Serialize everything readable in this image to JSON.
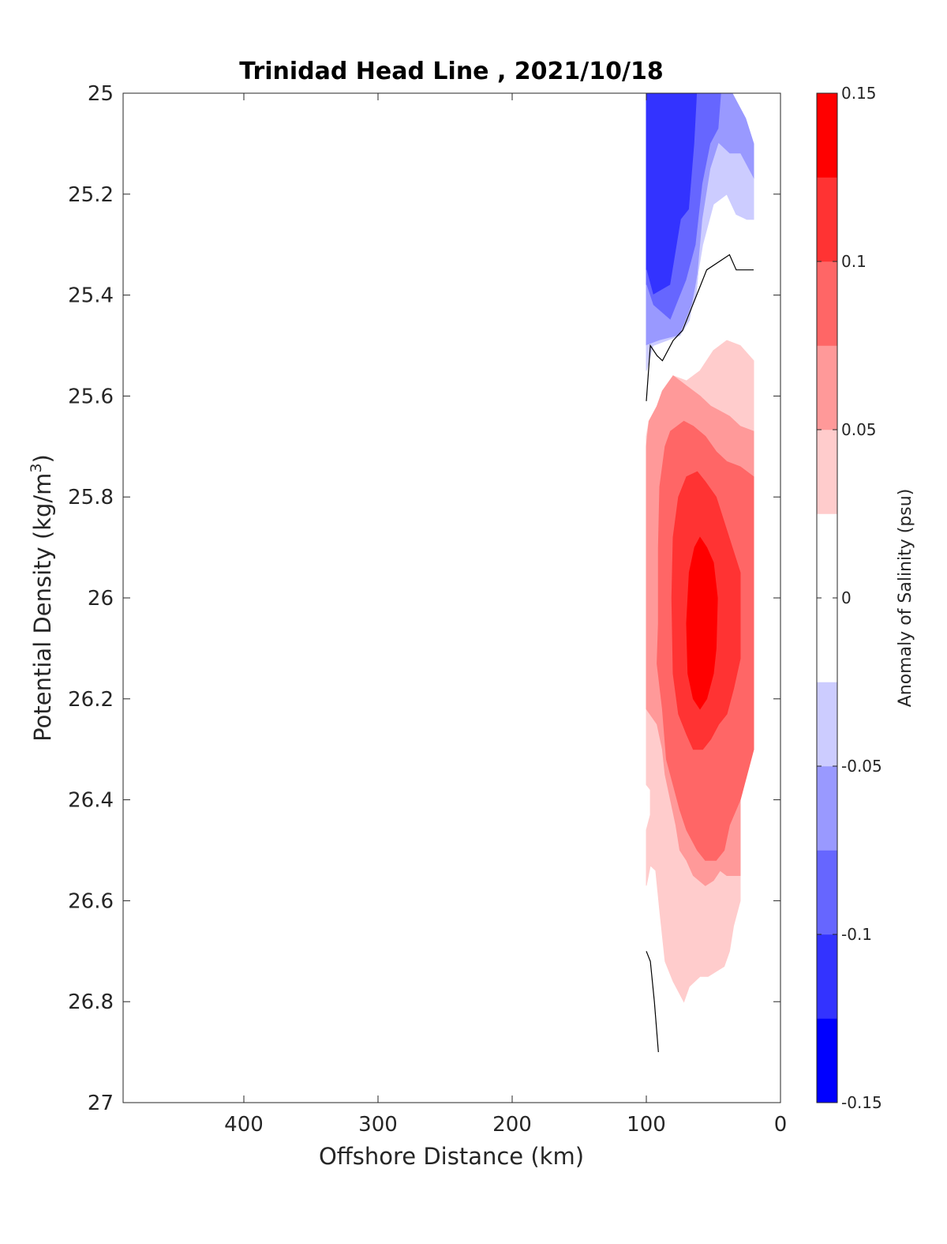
{
  "chart_data": {
    "type": "contour",
    "title": "Trinidad Head Line , 2021/10/18",
    "xlabel": "Offshore Distance (km)",
    "ylabel_base": "Potential Density (kg/m",
    "ylabel_sup": "3",
    "ylabel_close": ")",
    "xlim": [
      490,
      0
    ],
    "x_reversed": true,
    "ylim": [
      27,
      25
    ],
    "y_reversed": true,
    "x_ticks": [
      400,
      300,
      200,
      100,
      0
    ],
    "x_tick_labels": [
      "400",
      "300",
      "200",
      "100",
      "0"
    ],
    "y_ticks": [
      25,
      25.2,
      25.4,
      25.6,
      25.8,
      26,
      26.2,
      26.4,
      26.6,
      26.8,
      27
    ],
    "y_tick_labels": [
      "25",
      "25.2",
      "25.4",
      "25.6",
      "25.8",
      "26",
      "26.2",
      "26.4",
      "26.6",
      "26.8",
      "27"
    ],
    "grid": false,
    "colorbar": {
      "label": "Anomaly of Salinity (psu)",
      "range": [
        -0.15,
        0.15
      ],
      "levels": [
        -0.15,
        -0.125,
        -0.1,
        -0.075,
        -0.05,
        -0.025,
        0.025,
        0.05,
        0.075,
        0.1,
        0.125,
        0.15
      ],
      "colors": [
        "#0000ff",
        "#3333ff",
        "#6666ff",
        "#9999ff",
        "#ccccff",
        "#ffffff",
        "#ffcccc",
        "#ff9999",
        "#ff6666",
        "#ff3333",
        "#ff0000"
      ],
      "tick_values": [
        0.15,
        0.1,
        0.05,
        0,
        -0.05,
        -0.1,
        -0.15
      ],
      "tick_labels": [
        "0.15",
        "0.1",
        "0.05",
        "0",
        "-0.05",
        "-0.1",
        "-0.15"
      ]
    },
    "regions": [
      {
        "level": -0.125,
        "color": "#3333ff",
        "points": [
          [
            100,
            25
          ],
          [
            62,
            25
          ],
          [
            64,
            25.1
          ],
          [
            68,
            25.23
          ],
          [
            74,
            25.25
          ],
          [
            82,
            25.38
          ],
          [
            95,
            25.4
          ],
          [
            100,
            25.35
          ]
        ]
      },
      {
        "level": -0.1,
        "color": "#6666ff",
        "points": [
          [
            62,
            25
          ],
          [
            44,
            25
          ],
          [
            46,
            25.07
          ],
          [
            52,
            25.1
          ],
          [
            58,
            25.18
          ],
          [
            63,
            25.3
          ],
          [
            70,
            25.37
          ],
          [
            82,
            25.45
          ],
          [
            95,
            25.42
          ],
          [
            100,
            25.38
          ],
          [
            100,
            25.35
          ],
          [
            95,
            25.4
          ],
          [
            82,
            25.38
          ],
          [
            74,
            25.25
          ],
          [
            68,
            25.23
          ],
          [
            64,
            25.1
          ]
        ]
      },
      {
        "level": -0.075,
        "color": "#9999ff",
        "points": [
          [
            44,
            25
          ],
          [
            36,
            25
          ],
          [
            26,
            25.05
          ],
          [
            20,
            25.1
          ],
          [
            20,
            25.17
          ],
          [
            30,
            25.12
          ],
          [
            38,
            25.12
          ],
          [
            46,
            25.1
          ],
          [
            52,
            25.15
          ],
          [
            58,
            25.25
          ],
          [
            63,
            25.4
          ],
          [
            75,
            25.48
          ],
          [
            90,
            25.49
          ],
          [
            100,
            25.5
          ],
          [
            100,
            25.38
          ],
          [
            95,
            25.42
          ],
          [
            82,
            25.45
          ],
          [
            70,
            25.37
          ],
          [
            63,
            25.3
          ],
          [
            58,
            25.18
          ],
          [
            52,
            25.1
          ],
          [
            46,
            25.07
          ]
        ]
      },
      {
        "level": -0.05,
        "color": "#ccccff",
        "points": [
          [
            20,
            25.17
          ],
          [
            30,
            25.12
          ],
          [
            38,
            25.12
          ],
          [
            46,
            25.1
          ],
          [
            52,
            25.15
          ],
          [
            58,
            25.25
          ],
          [
            63,
            25.4
          ],
          [
            75,
            25.48
          ],
          [
            90,
            25.49
          ],
          [
            100,
            25.5
          ],
          [
            100,
            25.55
          ],
          [
            95,
            25.5
          ],
          [
            85,
            25.49
          ],
          [
            75,
            25.48
          ],
          [
            68,
            25.45
          ],
          [
            63,
            25.38
          ],
          [
            58,
            25.3
          ],
          [
            50,
            25.22
          ],
          [
            40,
            25.2
          ],
          [
            33,
            25.24
          ],
          [
            25,
            25.25
          ],
          [
            20,
            25.25
          ]
        ]
      },
      {
        "level": 0.025,
        "color": "#ffcccc",
        "points": [
          [
            20,
            25.53
          ],
          [
            30,
            25.5
          ],
          [
            40,
            25.49
          ],
          [
            50,
            25.51
          ],
          [
            60,
            25.55
          ],
          [
            70,
            25.57
          ],
          [
            80,
            25.56
          ],
          [
            88,
            25.59
          ],
          [
            92,
            25.62
          ],
          [
            98,
            25.65
          ],
          [
            100,
            25.68
          ],
          [
            100,
            26.37
          ],
          [
            97,
            26.38
          ],
          [
            97,
            26.43
          ],
          [
            100,
            26.46
          ],
          [
            100,
            26.57
          ],
          [
            97,
            26.53
          ],
          [
            93,
            26.54
          ],
          [
            90,
            26.62
          ],
          [
            86,
            26.72
          ],
          [
            80,
            26.76
          ],
          [
            72,
            26.8
          ],
          [
            68,
            26.77
          ],
          [
            60,
            26.75
          ],
          [
            54,
            26.75
          ],
          [
            42,
            26.73
          ],
          [
            38,
            26.7
          ],
          [
            35,
            26.65
          ],
          [
            30,
            26.6
          ],
          [
            30,
            26.35
          ],
          [
            20,
            26.3
          ]
        ]
      },
      {
        "level": 0.05,
        "color": "#ff9999",
        "points": [
          [
            20,
            25.67
          ],
          [
            30,
            25.66
          ],
          [
            38,
            25.64
          ],
          [
            45,
            25.63
          ],
          [
            52,
            25.62
          ],
          [
            60,
            25.6
          ],
          [
            70,
            25.58
          ],
          [
            80,
            25.56
          ],
          [
            88,
            25.59
          ],
          [
            92,
            25.62
          ],
          [
            98,
            25.65
          ],
          [
            100,
            25.7
          ],
          [
            100,
            26.22
          ],
          [
            92,
            26.25
          ],
          [
            88,
            26.3
          ],
          [
            86,
            26.35
          ],
          [
            82,
            26.4
          ],
          [
            78,
            26.45
          ],
          [
            75,
            26.5
          ],
          [
            70,
            26.52
          ],
          [
            65,
            26.55
          ],
          [
            56,
            26.57
          ],
          [
            50,
            26.56
          ],
          [
            45,
            26.54
          ],
          [
            40,
            26.55
          ],
          [
            30,
            26.55
          ],
          [
            30,
            26.4
          ],
          [
            20,
            26.3
          ]
        ]
      },
      {
        "level": 0.075,
        "color": "#ff6666",
        "points": [
          [
            20,
            25.76
          ],
          [
            30,
            25.74
          ],
          [
            40,
            25.73
          ],
          [
            48,
            25.71
          ],
          [
            56,
            25.68
          ],
          [
            65,
            25.66
          ],
          [
            72,
            25.65
          ],
          [
            82,
            25.67
          ],
          [
            86,
            25.7
          ],
          [
            90,
            25.78
          ],
          [
            91,
            25.9
          ],
          [
            91,
            26.05
          ],
          [
            92,
            26.13
          ],
          [
            88,
            26.22
          ],
          [
            85,
            26.32
          ],
          [
            80,
            26.37
          ],
          [
            75,
            26.42
          ],
          [
            70,
            26.46
          ],
          [
            62,
            26.5
          ],
          [
            56,
            26.52
          ],
          [
            48,
            26.52
          ],
          [
            42,
            26.5
          ],
          [
            38,
            26.45
          ],
          [
            30,
            26.4
          ],
          [
            20,
            26.3
          ]
        ]
      },
      {
        "level": 0.1,
        "color": "#ff3333",
        "points": [
          [
            30,
            25.95
          ],
          [
            36,
            25.9
          ],
          [
            42,
            25.85
          ],
          [
            48,
            25.8
          ],
          [
            56,
            25.77
          ],
          [
            62,
            25.75
          ],
          [
            70,
            25.76
          ],
          [
            76,
            25.8
          ],
          [
            80,
            25.88
          ],
          [
            81,
            26.0
          ],
          [
            80,
            26.15
          ],
          [
            76,
            26.23
          ],
          [
            70,
            26.27
          ],
          [
            65,
            26.3
          ],
          [
            58,
            26.3
          ],
          [
            52,
            26.28
          ],
          [
            46,
            26.25
          ],
          [
            40,
            26.23
          ],
          [
            35,
            26.18
          ],
          [
            30,
            26.12
          ]
        ]
      },
      {
        "level": 0.125,
        "color": "#ff0000",
        "points": [
          [
            47,
            26.0
          ],
          [
            50,
            25.93
          ],
          [
            55,
            25.9
          ],
          [
            60,
            25.88
          ],
          [
            64,
            25.9
          ],
          [
            68,
            25.95
          ],
          [
            70,
            26.05
          ],
          [
            69,
            26.15
          ],
          [
            65,
            26.2
          ],
          [
            60,
            26.22
          ],
          [
            55,
            26.2
          ],
          [
            50,
            26.15
          ],
          [
            48,
            26.1
          ]
        ]
      }
    ],
    "contour_lines": [
      {
        "level": 0,
        "points": [
          [
            100,
            25.61
          ],
          [
            97,
            25.5
          ],
          [
            92,
            25.52
          ],
          [
            88,
            25.53
          ],
          [
            80,
            25.49
          ],
          [
            73,
            25.47
          ],
          [
            55,
            25.35
          ],
          [
            38,
            25.32
          ],
          [
            33,
            25.35
          ],
          [
            20,
            25.35
          ]
        ]
      },
      {
        "level": 0,
        "points": [
          [
            100,
            26.7
          ],
          [
            97,
            26.72
          ],
          [
            94,
            26.8
          ],
          [
            91,
            26.9
          ]
        ]
      }
    ]
  }
}
